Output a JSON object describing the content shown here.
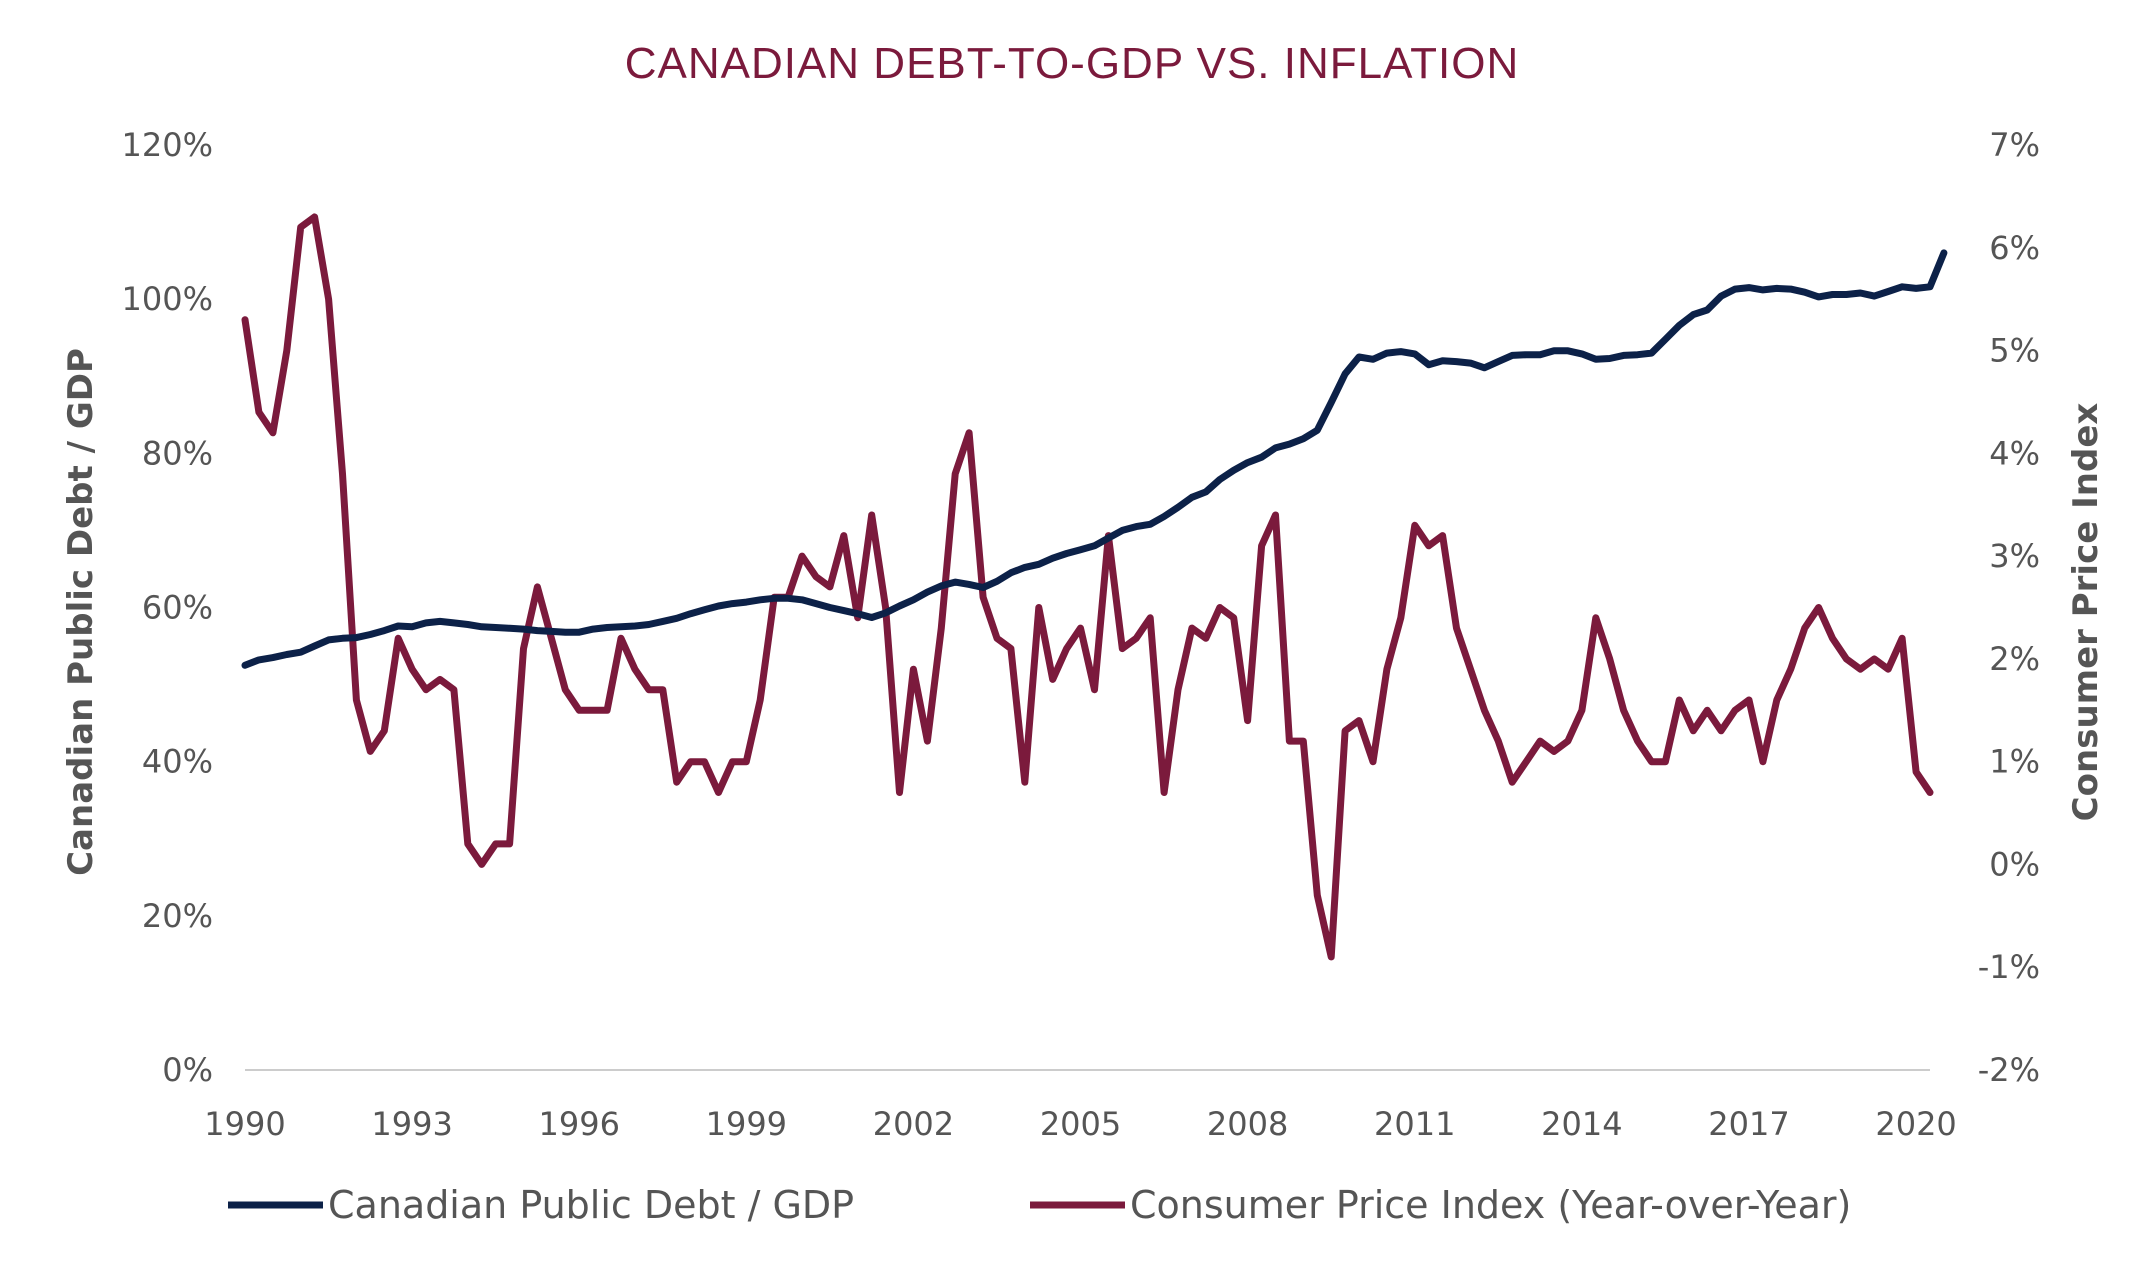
{
  "chart_data": {
    "type": "line",
    "title": "CANADIAN DEBT-TO-GDP VS. INFLATION",
    "ylabel_left": "Canadian Public Debt / GDP",
    "ylabel_right": "Consumer Price Index",
    "x_ticks": [
      "1990",
      "1993",
      "1996",
      "1999",
      "2002",
      "2005",
      "2008",
      "2011",
      "2014",
      "2017",
      "2020"
    ],
    "x_range": [
      1990,
      2020.25
    ],
    "y_left_ticks": [
      "0%",
      "20%",
      "40%",
      "60%",
      "80%",
      "100%",
      "120%"
    ],
    "y_left_range": [
      0,
      120
    ],
    "y_right_ticks": [
      "-2%",
      "-1%",
      "0%",
      "1%",
      "2%",
      "3%",
      "4%",
      "5%",
      "6%",
      "7%"
    ],
    "y_right_range": [
      -2,
      7
    ],
    "grid": false,
    "legend_position": "bottom",
    "colors": {
      "debt": "#0c2148",
      "cpi": "#7b1a3c",
      "title": "#7b1a3c",
      "text": "#555555",
      "axis": "#cccccc"
    },
    "series": [
      {
        "name": "Canadian Public Debt / GDP",
        "axis": "left",
        "points": [
          [
            1990.0,
            52.5
          ],
          [
            1990.25,
            53.2
          ],
          [
            1990.5,
            53.5
          ],
          [
            1990.75,
            53.9
          ],
          [
            1991.0,
            54.2
          ],
          [
            1991.25,
            55.0
          ],
          [
            1991.5,
            55.8
          ],
          [
            1991.75,
            56.0
          ],
          [
            1992.0,
            56.1
          ],
          [
            1992.25,
            56.5
          ],
          [
            1992.5,
            57.0
          ],
          [
            1992.75,
            57.6
          ],
          [
            1993.0,
            57.5
          ],
          [
            1993.25,
            58.0
          ],
          [
            1993.5,
            58.2
          ],
          [
            1993.75,
            58.0
          ],
          [
            1994.0,
            57.8
          ],
          [
            1994.25,
            57.5
          ],
          [
            1994.5,
            57.4
          ],
          [
            1994.75,
            57.3
          ],
          [
            1995.0,
            57.2
          ],
          [
            1995.25,
            57.0
          ],
          [
            1995.5,
            56.9
          ],
          [
            1995.75,
            56.8
          ],
          [
            1996.0,
            56.8
          ],
          [
            1996.25,
            57.2
          ],
          [
            1996.5,
            57.4
          ],
          [
            1996.75,
            57.5
          ],
          [
            1997.0,
            57.6
          ],
          [
            1997.25,
            57.8
          ],
          [
            1997.5,
            58.2
          ],
          [
            1997.75,
            58.6
          ],
          [
            1998.0,
            59.2
          ],
          [
            1998.25,
            59.7
          ],
          [
            1998.5,
            60.2
          ],
          [
            1998.75,
            60.5
          ],
          [
            1999.0,
            60.7
          ],
          [
            1999.25,
            61.0
          ],
          [
            1999.5,
            61.2
          ],
          [
            1999.75,
            61.2
          ],
          [
            2000.0,
            61.0
          ],
          [
            2000.25,
            60.5
          ],
          [
            2000.5,
            60.0
          ],
          [
            2000.75,
            59.6
          ],
          [
            2001.0,
            59.2
          ],
          [
            2001.25,
            58.7
          ],
          [
            2001.5,
            59.3
          ],
          [
            2001.75,
            60.2
          ],
          [
            2002.0,
            61.0
          ],
          [
            2002.25,
            62.0
          ],
          [
            2002.5,
            62.8
          ],
          [
            2002.75,
            63.3
          ],
          [
            2003.0,
            63.0
          ],
          [
            2003.25,
            62.6
          ],
          [
            2003.5,
            63.4
          ],
          [
            2003.75,
            64.5
          ],
          [
            2004.0,
            65.2
          ],
          [
            2004.25,
            65.6
          ],
          [
            2004.5,
            66.4
          ],
          [
            2004.75,
            67.0
          ],
          [
            2005.0,
            67.5
          ],
          [
            2005.25,
            68.0
          ],
          [
            2005.5,
            69.0
          ],
          [
            2005.75,
            70.0
          ],
          [
            2006.0,
            70.5
          ],
          [
            2006.25,
            70.8
          ],
          [
            2006.5,
            71.8
          ],
          [
            2006.75,
            73.0
          ],
          [
            2007.0,
            74.3
          ],
          [
            2007.25,
            75.0
          ],
          [
            2007.5,
            76.6
          ],
          [
            2007.75,
            77.8
          ],
          [
            2008.0,
            78.8
          ],
          [
            2008.25,
            79.5
          ],
          [
            2008.5,
            80.7
          ],
          [
            2008.75,
            81.2
          ],
          [
            2009.0,
            81.9
          ],
          [
            2009.25,
            83.0
          ],
          [
            2009.5,
            86.6
          ],
          [
            2009.75,
            90.3
          ],
          [
            2010.0,
            92.5
          ],
          [
            2010.25,
            92.2
          ],
          [
            2010.5,
            93.0
          ],
          [
            2010.75,
            93.2
          ],
          [
            2011.0,
            92.9
          ],
          [
            2011.25,
            91.5
          ],
          [
            2011.5,
            92.0
          ],
          [
            2011.75,
            91.9
          ],
          [
            2012.0,
            91.7
          ],
          [
            2012.25,
            91.1
          ],
          [
            2012.5,
            91.9
          ],
          [
            2012.75,
            92.7
          ],
          [
            2013.0,
            92.8
          ],
          [
            2013.25,
            92.8
          ],
          [
            2013.5,
            93.3
          ],
          [
            2013.75,
            93.3
          ],
          [
            2014.0,
            92.9
          ],
          [
            2014.25,
            92.2
          ],
          [
            2014.5,
            92.3
          ],
          [
            2014.75,
            92.7
          ],
          [
            2015.0,
            92.8
          ],
          [
            2015.25,
            93.0
          ],
          [
            2015.5,
            94.8
          ],
          [
            2015.75,
            96.6
          ],
          [
            2016.0,
            98.0
          ],
          [
            2016.25,
            98.6
          ],
          [
            2016.5,
            100.4
          ],
          [
            2016.75,
            101.3
          ],
          [
            2017.0,
            101.5
          ],
          [
            2017.25,
            101.2
          ],
          [
            2017.5,
            101.4
          ],
          [
            2017.75,
            101.3
          ],
          [
            2018.0,
            100.9
          ],
          [
            2018.25,
            100.3
          ],
          [
            2018.5,
            100.6
          ],
          [
            2018.75,
            100.6
          ],
          [
            2019.0,
            100.8
          ],
          [
            2019.25,
            100.4
          ],
          [
            2019.5,
            101.0
          ],
          [
            2019.75,
            101.6
          ],
          [
            2020.0,
            101.4
          ],
          [
            2020.25,
            101.6
          ],
          [
            2020.5,
            106.0
          ]
        ]
      },
      {
        "name": "Consumer Price Index (Year-over-Year)",
        "axis": "right",
        "points": [
          [
            1990.0,
            5.3
          ],
          [
            1990.25,
            4.4
          ],
          [
            1990.5,
            4.2
          ],
          [
            1990.75,
            5.0
          ],
          [
            1991.0,
            6.2
          ],
          [
            1991.25,
            6.3
          ],
          [
            1991.5,
            5.5
          ],
          [
            1991.75,
            3.8
          ],
          [
            1992.0,
            1.6
          ],
          [
            1992.25,
            1.1
          ],
          [
            1992.5,
            1.3
          ],
          [
            1992.75,
            2.2
          ],
          [
            1993.0,
            1.9
          ],
          [
            1993.25,
            1.7
          ],
          [
            1993.5,
            1.8
          ],
          [
            1993.75,
            1.7
          ],
          [
            1994.0,
            0.2
          ],
          [
            1994.25,
            0.0
          ],
          [
            1994.5,
            0.2
          ],
          [
            1994.75,
            0.2
          ],
          [
            1995.0,
            2.1
          ],
          [
            1995.25,
            2.7
          ],
          [
            1995.5,
            2.2
          ],
          [
            1995.75,
            1.7
          ],
          [
            1996.0,
            1.5
          ],
          [
            1996.25,
            1.5
          ],
          [
            1996.5,
            1.5
          ],
          [
            1996.75,
            2.2
          ],
          [
            1997.0,
            1.9
          ],
          [
            1997.25,
            1.7
          ],
          [
            1997.5,
            1.7
          ],
          [
            1997.75,
            0.8
          ],
          [
            1998.0,
            1.0
          ],
          [
            1998.25,
            1.0
          ],
          [
            1998.5,
            0.7
          ],
          [
            1998.75,
            1.0
          ],
          [
            1999.0,
            1.0
          ],
          [
            1999.25,
            1.6
          ],
          [
            1999.5,
            2.6
          ],
          [
            1999.75,
            2.6
          ],
          [
            2000.0,
            3.0
          ],
          [
            2000.25,
            2.8
          ],
          [
            2000.5,
            2.7
          ],
          [
            2000.75,
            3.2
          ],
          [
            2001.0,
            2.4
          ],
          [
            2001.25,
            3.4
          ],
          [
            2001.5,
            2.5
          ],
          [
            2001.75,
            0.7
          ],
          [
            2002.0,
            1.9
          ],
          [
            2002.25,
            1.2
          ],
          [
            2002.5,
            2.3
          ],
          [
            2002.75,
            3.8
          ],
          [
            2003.0,
            4.2
          ],
          [
            2003.25,
            2.6
          ],
          [
            2003.5,
            2.2
          ],
          [
            2003.75,
            2.1
          ],
          [
            2004.0,
            0.8
          ],
          [
            2004.25,
            2.5
          ],
          [
            2004.5,
            1.8
          ],
          [
            2004.75,
            2.1
          ],
          [
            2005.0,
            2.3
          ],
          [
            2005.25,
            1.7
          ],
          [
            2005.5,
            3.2
          ],
          [
            2005.75,
            2.1
          ],
          [
            2006.0,
            2.2
          ],
          [
            2006.25,
            2.4
          ],
          [
            2006.5,
            0.7
          ],
          [
            2006.75,
            1.7
          ],
          [
            2007.0,
            2.3
          ],
          [
            2007.25,
            2.2
          ],
          [
            2007.5,
            2.5
          ],
          [
            2007.75,
            2.4
          ],
          [
            2008.0,
            1.4
          ],
          [
            2008.25,
            3.1
          ],
          [
            2008.5,
            3.4
          ],
          [
            2008.75,
            1.2
          ],
          [
            2009.0,
            1.2
          ],
          [
            2009.25,
            -0.3
          ],
          [
            2009.5,
            -0.9
          ],
          [
            2009.75,
            1.3
          ],
          [
            2010.0,
            1.4
          ],
          [
            2010.25,
            1.0
          ],
          [
            2010.5,
            1.9
          ],
          [
            2010.75,
            2.4
          ],
          [
            2011.0,
            3.3
          ],
          [
            2011.25,
            3.1
          ],
          [
            2011.5,
            3.2
          ],
          [
            2011.75,
            2.3
          ],
          [
            2012.0,
            1.9
          ],
          [
            2012.25,
            1.5
          ],
          [
            2012.5,
            1.2
          ],
          [
            2012.75,
            0.8
          ],
          [
            2013.0,
            1.0
          ],
          [
            2013.25,
            1.2
          ],
          [
            2013.5,
            1.1
          ],
          [
            2013.75,
            1.2
          ],
          [
            2014.0,
            1.5
          ],
          [
            2014.25,
            2.4
          ],
          [
            2014.5,
            2.0
          ],
          [
            2014.75,
            1.5
          ],
          [
            2015.0,
            1.2
          ],
          [
            2015.25,
            1.0
          ],
          [
            2015.5,
            1.0
          ],
          [
            2015.75,
            1.6
          ],
          [
            2016.0,
            1.3
          ],
          [
            2016.25,
            1.5
          ],
          [
            2016.5,
            1.3
          ],
          [
            2016.75,
            1.5
          ],
          [
            2017.0,
            1.6
          ],
          [
            2017.25,
            1.0
          ],
          [
            2017.5,
            1.6
          ],
          [
            2017.75,
            1.9
          ],
          [
            2018.0,
            2.3
          ],
          [
            2018.25,
            2.5
          ],
          [
            2018.5,
            2.2
          ],
          [
            2018.75,
            2.0
          ],
          [
            2019.0,
            1.9
          ],
          [
            2019.25,
            2.0
          ],
          [
            2019.5,
            1.9
          ],
          [
            2019.75,
            2.2
          ],
          [
            2020.0,
            0.9
          ],
          [
            2020.25,
            0.7
          ]
        ]
      }
    ]
  }
}
